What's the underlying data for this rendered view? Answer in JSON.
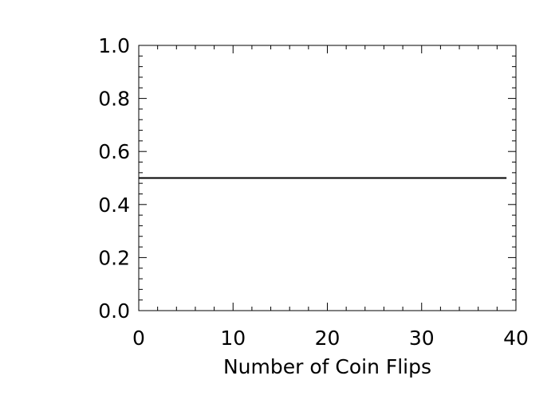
{
  "chart_data": {
    "type": "line",
    "title": "",
    "xlabel": "Number of Coin Flips",
    "ylabel": "",
    "xlim": [
      0,
      40
    ],
    "ylim": [
      0.0,
      1.0
    ],
    "x_ticks": [
      0,
      10,
      20,
      30,
      40
    ],
    "x_tick_labels": [
      "0",
      "10",
      "20",
      "30",
      "40"
    ],
    "y_ticks": [
      0.0,
      0.2,
      0.4,
      0.6,
      0.8,
      1.0
    ],
    "y_tick_labels": [
      "0.0",
      "0.2",
      "0.4",
      "0.6",
      "0.8",
      "1.0"
    ],
    "x_minor_step": 2,
    "y_minor_step": 0.04,
    "grid": false,
    "legend": "none",
    "series": [
      {
        "color": "#000000",
        "x": [
          0,
          39
        ],
        "y": [
          0.5,
          0.5
        ]
      }
    ]
  }
}
